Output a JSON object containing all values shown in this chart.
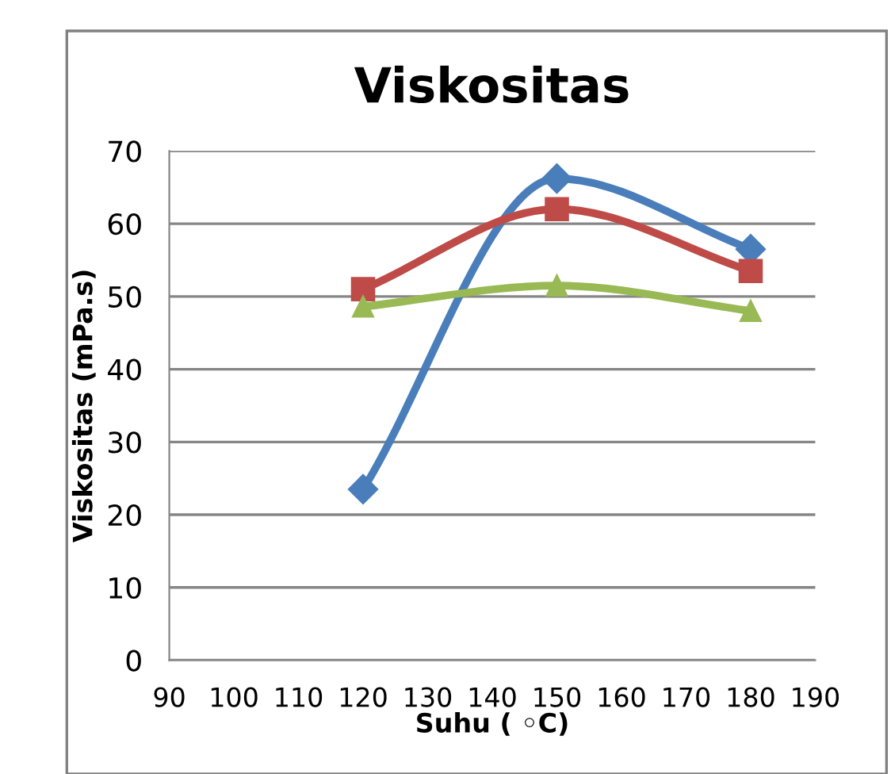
{
  "chart_data": {
    "type": "line",
    "title": "Viskositas",
    "xlabel": "Suhu ( ◦C)",
    "ylabel": "Viskositas (mPa.s)",
    "xlim": [
      90,
      190
    ],
    "xticks": [
      90,
      100,
      110,
      120,
      130,
      140,
      150,
      160,
      170,
      180,
      190
    ],
    "ylim": [
      0,
      70
    ],
    "yticks": [
      0,
      10,
      20,
      30,
      40,
      50,
      60,
      70
    ],
    "grid": "y",
    "legend": false,
    "x": [
      120,
      150,
      180
    ],
    "series": [
      {
        "color": "#4a7ebb",
        "marker": "diamond",
        "values": [
          23.5,
          66.2,
          56.5
        ]
      },
      {
        "color": "#be4b48",
        "marker": "square",
        "values": [
          51,
          62,
          53.5
        ]
      },
      {
        "color": "#98b954",
        "marker": "triangle",
        "values": [
          48.6,
          51.5,
          48
        ]
      }
    ]
  }
}
